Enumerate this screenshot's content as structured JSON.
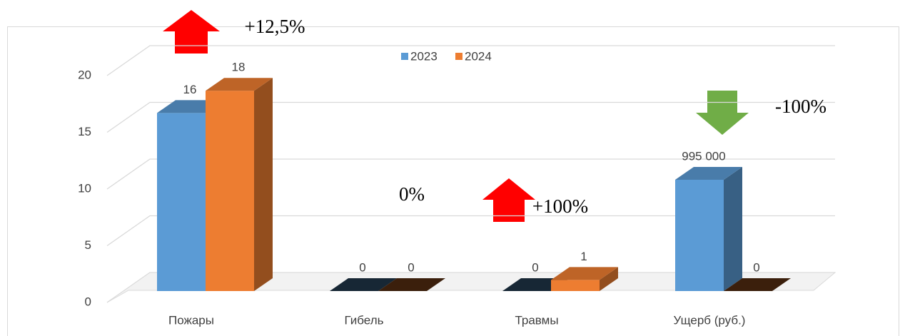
{
  "chart_data": {
    "type": "bar3d",
    "categories": [
      "Пожары",
      "Гибель",
      "Травмы",
      "Ущерб (руб.)"
    ],
    "series": [
      {
        "name": "2023",
        "color": "#5b9bd5",
        "values": [
          16,
          0,
          0,
          10
        ],
        "value_labels": [
          "16",
          "0",
          "0",
          null
        ]
      },
      {
        "name": "2024",
        "color": "#ed7d31",
        "values": [
          18,
          0,
          1,
          0
        ]
      }
    ],
    "ylim": [
      0,
      20
    ],
    "yticks": [
      0,
      5,
      10,
      15,
      20
    ],
    "grid": true,
    "legend": "top",
    "annotations": [
      "+12,5%",
      "0%",
      "+100%",
      "-100%",
      "995 000"
    ]
  }
}
